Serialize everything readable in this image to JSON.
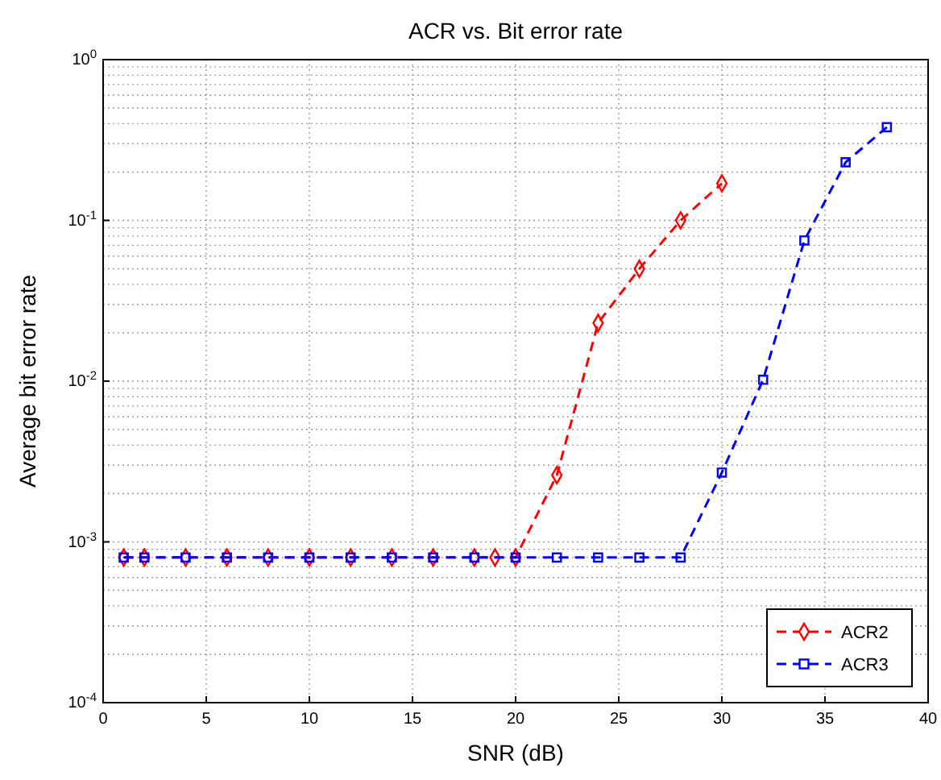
{
  "chart_data": {
    "type": "line",
    "title": "ACR vs. Bit error rate",
    "xlabel": "SNR (dB)",
    "ylabel": "Average bit error rate",
    "log": "y",
    "grid": true,
    "legend": "bottom right",
    "line_style": "dashed",
    "xlim": [
      0,
      40
    ],
    "xticks": [
      0,
      5,
      10,
      15,
      20,
      25,
      30,
      35,
      40
    ],
    "ylim": [
      0.0001,
      1
    ],
    "yticks": [
      {
        "value": 0.0001,
        "label": "10$^{-4}$"
      },
      {
        "value": 0.001,
        "label": "10$^{-3}$"
      },
      {
        "value": 0.01,
        "label": "10$^{-2}$"
      },
      {
        "value": 0.1,
        "label": "10$^{-1}$"
      },
      {
        "value": 1,
        "label": "10$^{0}$"
      }
    ],
    "series": [
      {
        "name": "ACR2",
        "color": "#ff0000",
        "marker": "diamond",
        "x": [
          1,
          2,
          4,
          6,
          8,
          10,
          12,
          14,
          16,
          18,
          19,
          20,
          22,
          24,
          26,
          28,
          30
        ],
        "values": [
          0.0008,
          0.0008,
          0.0008,
          0.0008,
          0.0008,
          0.0008,
          0.0008,
          0.0008,
          0.0008,
          0.0008,
          0.0008,
          0.0008,
          0.0026,
          0.023,
          0.05,
          0.1,
          0.17
        ]
      },
      {
        "name": "ACR3",
        "color": "#0000ff",
        "marker": "square",
        "x": [
          1,
          2,
          4,
          6,
          8,
          10,
          12,
          14,
          16,
          18,
          20,
          22,
          24,
          26,
          28,
          30,
          32,
          34,
          36,
          38
        ],
        "values": [
          0.0008,
          0.0008,
          0.0008,
          0.0008,
          0.0008,
          0.0008,
          0.0008,
          0.0008,
          0.0008,
          0.0008,
          0.0008,
          0.0008,
          0.0008,
          0.0008,
          0.0008,
          0.0027,
          0.0102,
          0.075,
          0.23,
          0.38
        ]
      }
    ]
  }
}
